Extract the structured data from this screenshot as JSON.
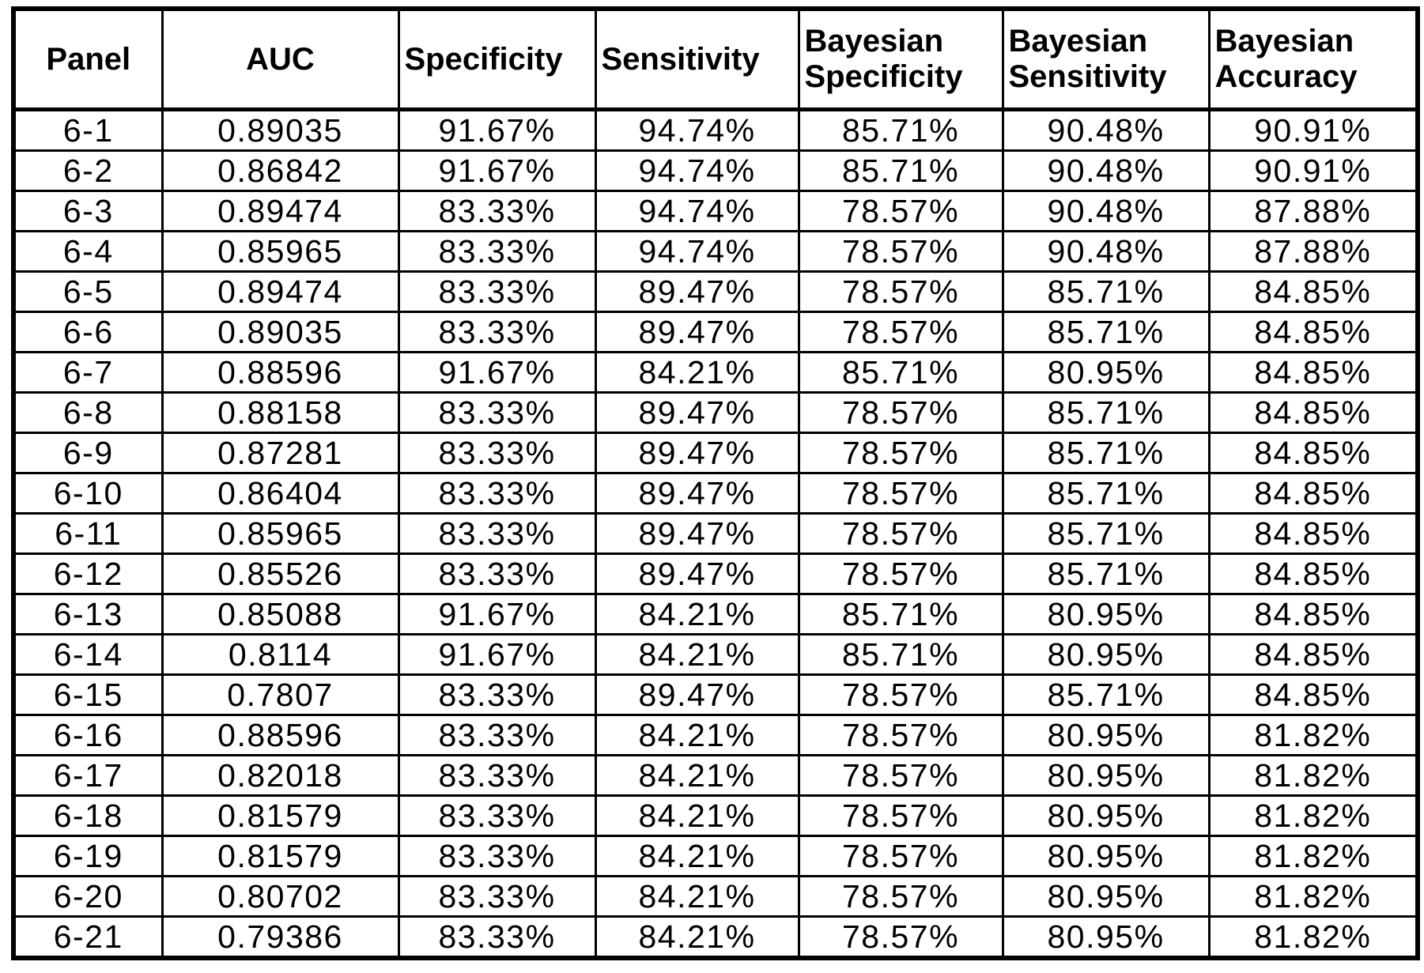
{
  "page": {
    "background_color": "#ffffff",
    "border_color": "#000000"
  },
  "table": {
    "columns": [
      {
        "key": "panel",
        "label": "Panel"
      },
      {
        "key": "auc",
        "label": "AUC"
      },
      {
        "key": "specificity",
        "label": "Specificity"
      },
      {
        "key": "sensitivity",
        "label": "Sensitivity"
      },
      {
        "key": "bayesian-specificity",
        "label": "Bayesian Specificity"
      },
      {
        "key": "bayesian-sensitivity",
        "label": "Bayesian Sensitivity"
      },
      {
        "key": "bayesian-accuracy",
        "label": "Bayesian Accuracy"
      }
    ],
    "rows": [
      [
        "6-1",
        "0.89035",
        "91.67%",
        "94.74%",
        "85.71%",
        "90.48%",
        "90.91%"
      ],
      [
        "6-2",
        "0.86842",
        "91.67%",
        "94.74%",
        "85.71%",
        "90.48%",
        "90.91%"
      ],
      [
        "6-3",
        "0.89474",
        "83.33%",
        "94.74%",
        "78.57%",
        "90.48%",
        "87.88%"
      ],
      [
        "6-4",
        "0.85965",
        "83.33%",
        "94.74%",
        "78.57%",
        "90.48%",
        "87.88%"
      ],
      [
        "6-5",
        "0.89474",
        "83.33%",
        "89.47%",
        "78.57%",
        "85.71%",
        "84.85%"
      ],
      [
        "6-6",
        "0.89035",
        "83.33%",
        "89.47%",
        "78.57%",
        "85.71%",
        "84.85%"
      ],
      [
        "6-7",
        "0.88596",
        "91.67%",
        "84.21%",
        "85.71%",
        "80.95%",
        "84.85%"
      ],
      [
        "6-8",
        "0.88158",
        "83.33%",
        "89.47%",
        "78.57%",
        "85.71%",
        "84.85%"
      ],
      [
        "6-9",
        "0.87281",
        "83.33%",
        "89.47%",
        "78.57%",
        "85.71%",
        "84.85%"
      ],
      [
        "6-10",
        "0.86404",
        "83.33%",
        "89.47%",
        "78.57%",
        "85.71%",
        "84.85%"
      ],
      [
        "6-11",
        "0.85965",
        "83.33%",
        "89.47%",
        "78.57%",
        "85.71%",
        "84.85%"
      ],
      [
        "6-12",
        "0.85526",
        "83.33%",
        "89.47%",
        "78.57%",
        "85.71%",
        "84.85%"
      ],
      [
        "6-13",
        "0.85088",
        "91.67%",
        "84.21%",
        "85.71%",
        "80.95%",
        "84.85%"
      ],
      [
        "6-14",
        "0.8114",
        "91.67%",
        "84.21%",
        "85.71%",
        "80.95%",
        "84.85%"
      ],
      [
        "6-15",
        "0.7807",
        "83.33%",
        "89.47%",
        "78.57%",
        "85.71%",
        "84.85%"
      ],
      [
        "6-16",
        "0.88596",
        "83.33%",
        "84.21%",
        "78.57%",
        "80.95%",
        "81.82%"
      ],
      [
        "6-17",
        "0.82018",
        "83.33%",
        "84.21%",
        "78.57%",
        "80.95%",
        "81.82%"
      ],
      [
        "6-18",
        "0.81579",
        "83.33%",
        "84.21%",
        "78.57%",
        "80.95%",
        "81.82%"
      ],
      [
        "6-19",
        "0.81579",
        "83.33%",
        "84.21%",
        "78.57%",
        "80.95%",
        "81.82%"
      ],
      [
        "6-20",
        "0.80702",
        "83.33%",
        "84.21%",
        "78.57%",
        "80.95%",
        "81.82%"
      ],
      [
        "6-21",
        "0.79386",
        "83.33%",
        "84.21%",
        "78.57%",
        "80.95%",
        "81.82%"
      ]
    ]
  }
}
